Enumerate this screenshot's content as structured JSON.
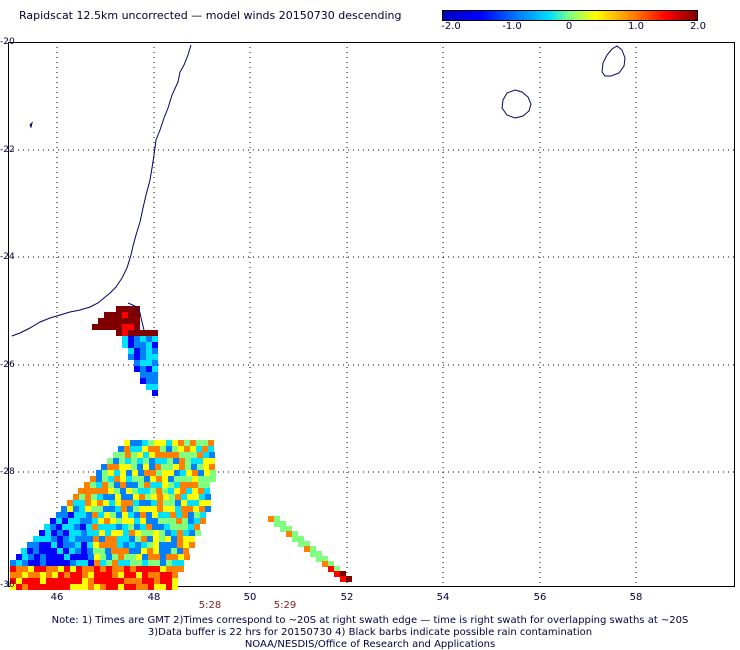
{
  "title": "Rapidscat 12.5km uncorrected — model winds 20150730 descending",
  "colorbar": {
    "labels": [
      "-2.0",
      "-1.0",
      "0",
      "1.0",
      "2.0"
    ],
    "range": [
      -2.0,
      2.0
    ]
  },
  "map": {
    "lat_labels": [
      "-20",
      "-22",
      "-24",
      "-26",
      "-28",
      "-30"
    ],
    "lon_labels": [
      "46",
      "48",
      "50",
      "52",
      "54",
      "56",
      "58"
    ],
    "swath_times": [
      "5:28",
      "5:29"
    ]
  },
  "notes": {
    "line1": "Note: 1) Times are GMT 2)Times correspond to ~20S at right swath edge — time is right swath for overlapping swaths at ~20S",
    "line2": "3)Data buffer is 22 hrs for 20150730 4) Black barbs indicate possible rain contamination",
    "line3": "NOAA/NESDIS/Office of Research and Applications"
  },
  "colors": {
    "coast": "#000066",
    "grid": "#000000",
    "palette": [
      "#800000",
      "#ff0000",
      "#ff8000",
      "#ffff00",
      "#80ff80",
      "#00e0ff",
      "#0080ff",
      "#0000ff"
    ]
  }
}
